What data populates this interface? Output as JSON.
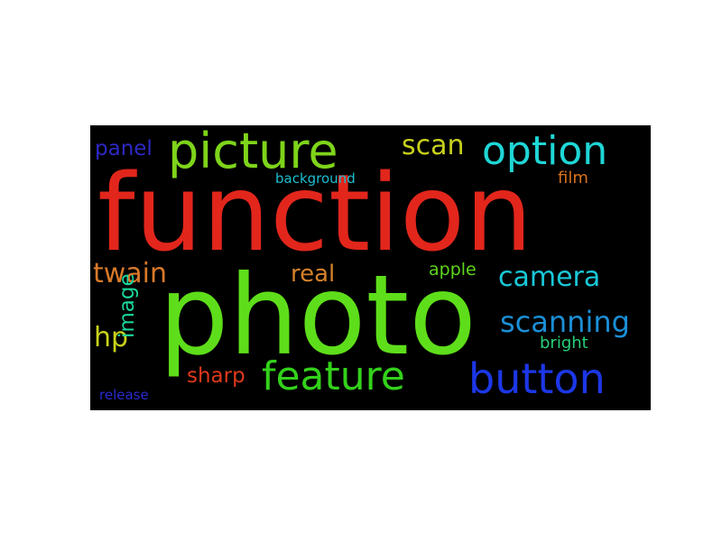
{
  "wordcloud": {
    "background": "#000000",
    "words": [
      {
        "text": "function",
        "color": "#e2261c"
      },
      {
        "text": "photo",
        "color": "#5ede1a"
      },
      {
        "text": "picture",
        "color": "#7ed41a"
      },
      {
        "text": "option",
        "color": "#1fd6d6"
      },
      {
        "text": "button",
        "color": "#1c37e6"
      },
      {
        "text": "feature",
        "color": "#33d11b"
      },
      {
        "text": "scanning",
        "color": "#1b8fd6"
      },
      {
        "text": "scan",
        "color": "#c8d11b"
      },
      {
        "text": "camera",
        "color": "#19c8d8"
      },
      {
        "text": "twain",
        "color": "#d8792a"
      },
      {
        "text": "real",
        "color": "#d6812a"
      },
      {
        "text": "panel",
        "color": "#2d29c4"
      },
      {
        "text": "hp",
        "color": "#c8d21b"
      },
      {
        "text": "image",
        "color": "#1bd69b"
      },
      {
        "text": "sharp",
        "color": "#e0391b"
      },
      {
        "text": "apple",
        "color": "#5ed41a"
      },
      {
        "text": "bright",
        "color": "#27d07a"
      },
      {
        "text": "film",
        "color": "#d8711b"
      },
      {
        "text": "background",
        "color": "#1bbed0"
      },
      {
        "text": "release",
        "color": "#2a2ad0"
      }
    ]
  }
}
